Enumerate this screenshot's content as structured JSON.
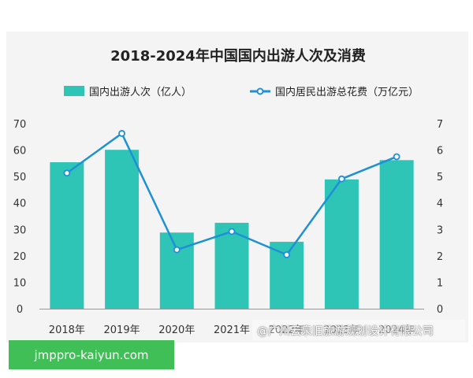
{
  "chart_data": {
    "type": "bar",
    "title": "2018-2024年中国国内出游人次及消费",
    "categories": [
      "2018年",
      "2019年",
      "2020年",
      "2021年",
      "2022年",
      "2023年",
      "2024年"
    ],
    "series": [
      {
        "name": "国内出游人次（亿人）",
        "type": "bar",
        "axis": "left",
        "color": "#2ec4b6",
        "values": [
          55.4,
          60.1,
          28.8,
          32.5,
          25.3,
          48.9,
          56.2
        ]
      },
      {
        "name": "国内居民出游总花费（万亿元）",
        "type": "line",
        "axis": "right",
        "color": "#1e90d6",
        "values": [
          5.13,
          6.63,
          2.23,
          2.92,
          2.04,
          4.91,
          5.75
        ]
      }
    ],
    "y_left": {
      "ylim": [
        0,
        70
      ],
      "ticks": [
        0,
        10,
        20,
        30,
        40,
        50,
        60,
        70
      ]
    },
    "y_right": {
      "ylim": [
        0,
        7
      ],
      "ticks": [
        0,
        1,
        2,
        3,
        4,
        5,
        6,
        7
      ]
    },
    "grid": false,
    "legend_placement": "top"
  },
  "watermark": "@广州云泉旧旅游规划设计有限公司",
  "site_badge": "jmppro-kaiyun.com"
}
